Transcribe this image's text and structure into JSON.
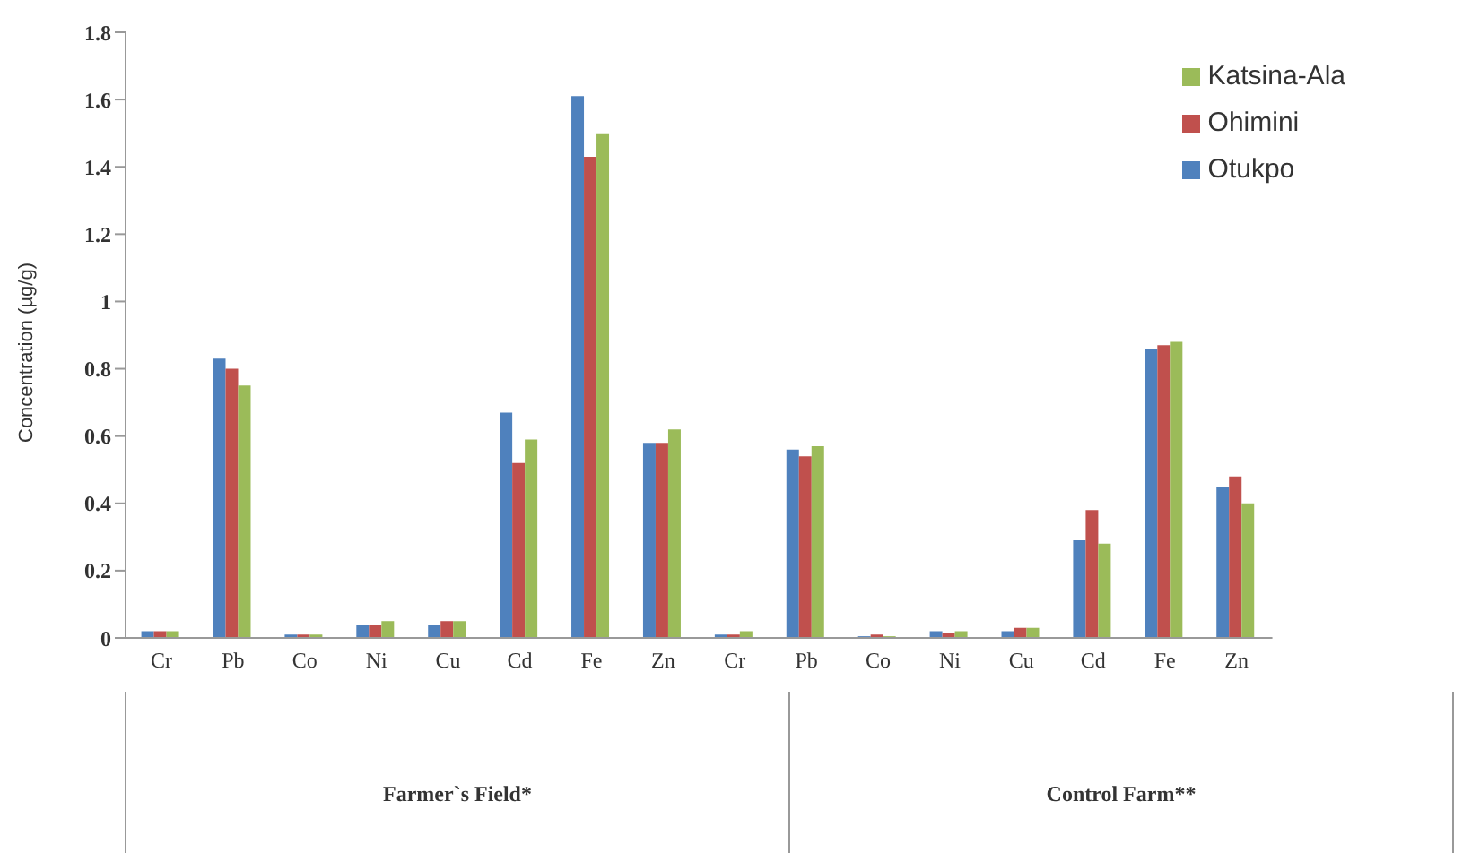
{
  "chart_data": {
    "type": "bar",
    "ylabel": "Concentration (µg/g)",
    "categories": [
      "Cr",
      "Pb",
      "Co",
      "Ni",
      "Cu",
      "Cd",
      "Fe",
      "Zn",
      "Cr",
      "Pb",
      "Co",
      "Ni",
      "Cu",
      "Cd",
      "Fe",
      "Zn"
    ],
    "series": [
      {
        "name": "Otukpo",
        "color": "#4f81bd",
        "values": [
          0.02,
          0.83,
          0.01,
          0.04,
          0.04,
          0.67,
          1.61,
          0.58,
          0.01,
          0.56,
          0.005,
          0.02,
          0.02,
          0.29,
          0.86,
          0.45
        ]
      },
      {
        "name": "Ohimini",
        "color": "#c0504d",
        "values": [
          0.02,
          0.8,
          0.01,
          0.04,
          0.05,
          0.52,
          1.43,
          0.58,
          0.01,
          0.54,
          0.01,
          0.015,
          0.03,
          0.38,
          0.87,
          0.48
        ]
      },
      {
        "name": "Katsina-Ala",
        "color": "#9bbb59",
        "values": [
          0.02,
          0.75,
          0.01,
          0.05,
          0.05,
          0.59,
          1.5,
          0.62,
          0.02,
          0.57,
          0.005,
          0.02,
          0.03,
          0.28,
          0.88,
          0.4
        ]
      }
    ],
    "ylim": [
      0,
      1.8
    ],
    "yticks": [
      0,
      0.2,
      0.4,
      0.6,
      0.8,
      1,
      1.2,
      1.4,
      1.6,
      1.8
    ],
    "annotations": [
      "Farmer`s Field*",
      "Control Farm**"
    ],
    "grid": false,
    "legend": "top right"
  }
}
